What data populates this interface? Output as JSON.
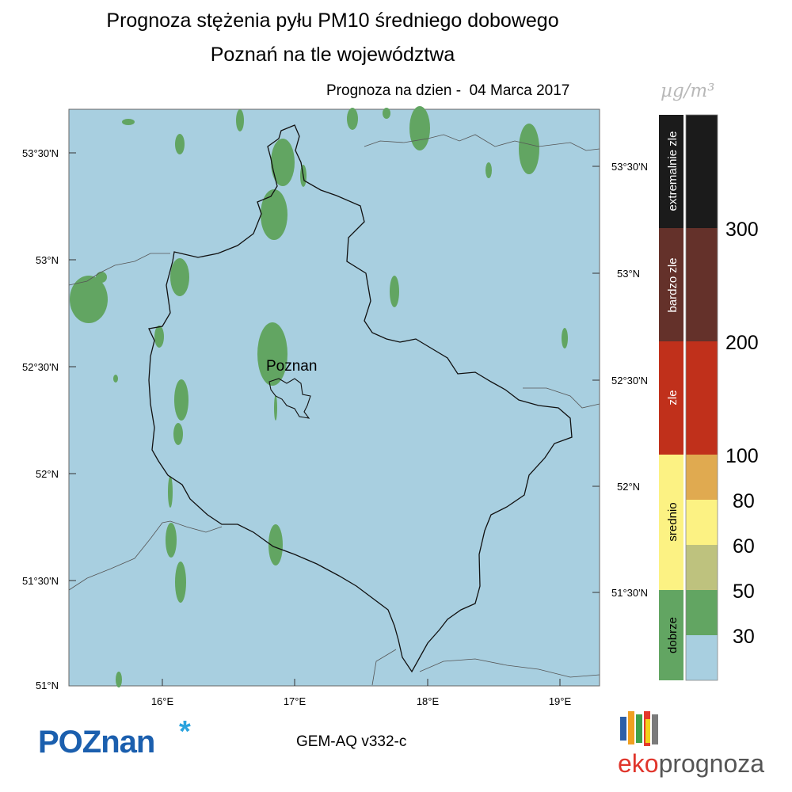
{
  "title": {
    "line1": "Prognoza stężenia pyłu PM10 średniego dobowego",
    "line2": "Poznań na tle województwa",
    "date": "Prognoza na dzien -  04 Marca 2017"
  },
  "map": {
    "city_label": "Poznan",
    "left_lat_labels": [
      "53°30'N",
      "53°N",
      "52°30'N",
      "52°N",
      "51°30'N",
      "51°N"
    ],
    "right_lat_labels": [
      "53°30'N",
      "53°N",
      "52°30'N",
      "52°N",
      "51°30'N"
    ],
    "lon_labels": [
      "16°E",
      "17°E",
      "18°E",
      "19°E"
    ],
    "colors": {
      "background": "#a8cfe0",
      "good": "#62a562",
      "border": "#111111"
    }
  },
  "legend": {
    "unit": "µg/m³",
    "categories": [
      {
        "label": "extremalnie zle",
        "color": "#1b1b1b"
      },
      {
        "label": "bardzo zle",
        "color": "#64312a"
      },
      {
        "label": "zle",
        "color": "#c0301b"
      },
      {
        "label": "srednio",
        "color": "#fcf283"
      },
      {
        "label": "dobrze",
        "color": "#62a562"
      }
    ],
    "scale_colors": [
      "#1b1b1b",
      "#64312a",
      "#c0301b",
      "#e0aa50",
      "#fcf283",
      "#bec27e",
      "#62a562",
      "#a8cfe0"
    ],
    "levels": [
      "300",
      "200",
      "100",
      "80",
      "60",
      "50",
      "30"
    ]
  },
  "footer": {
    "logo_left": "POZnan",
    "model": "GEM-AQ v332-c",
    "logo_right_eko": "eko",
    "logo_right_prognoza": "prognoza",
    "logo_bar_colors": [
      "#2d5fa8",
      "#f0a021",
      "#3ea14a",
      "#e43a2c",
      "#7b7b7b",
      "#f3d21b"
    ]
  }
}
